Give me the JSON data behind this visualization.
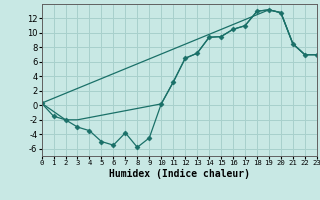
{
  "xlabel": "Humidex (Indice chaleur)",
  "bg_color": "#c8e8e4",
  "line_color": "#1a7068",
  "grid_color": "#a8d0cc",
  "xlim": [
    0,
    23
  ],
  "ylim": [
    -7,
    14
  ],
  "xticks": [
    0,
    1,
    2,
    3,
    4,
    5,
    6,
    7,
    8,
    9,
    10,
    11,
    12,
    13,
    14,
    15,
    16,
    17,
    18,
    19,
    20,
    21,
    22,
    23
  ],
  "yticks": [
    -6,
    -4,
    -2,
    0,
    2,
    4,
    6,
    8,
    10,
    12
  ],
  "line1_x": [
    0,
    1,
    2,
    3,
    4,
    5,
    6,
    7,
    8,
    9,
    10,
    11,
    12,
    13,
    14,
    15,
    16,
    17,
    18,
    19,
    20,
    21,
    22,
    23
  ],
  "line1_y": [
    0.3,
    -1.5,
    -2.0,
    -3.0,
    -3.5,
    -5.0,
    -5.5,
    -3.8,
    -5.8,
    -4.5,
    0.2,
    3.2,
    6.5,
    7.2,
    9.4,
    9.5,
    10.5,
    11.0,
    13.0,
    13.2,
    12.8,
    8.5,
    7.0,
    7.0
  ],
  "line2_x": [
    0,
    2,
    3,
    10,
    11,
    12,
    13,
    14,
    15,
    16,
    17,
    18,
    19,
    20,
    21,
    22,
    23
  ],
  "line2_y": [
    0.3,
    -2.0,
    -2.0,
    0.2,
    3.2,
    6.5,
    7.2,
    9.4,
    9.5,
    10.5,
    11.0,
    13.0,
    13.2,
    12.8,
    8.5,
    7.0,
    7.0
  ],
  "line3_x": [
    0,
    19,
    20,
    21,
    22,
    23
  ],
  "line3_y": [
    0.3,
    13.2,
    12.8,
    8.5,
    7.0,
    7.0
  ],
  "xlabel_fontsize": 7,
  "tick_fontsize_x": 5.2,
  "tick_fontsize_y": 6.0
}
